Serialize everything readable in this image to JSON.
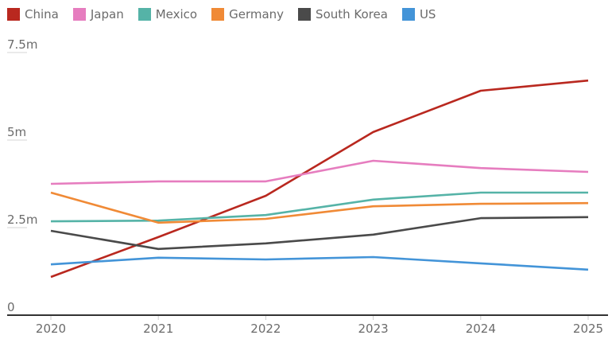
{
  "chart_data": {
    "type": "line",
    "title": "",
    "xlabel": "",
    "ylabel": "",
    "x": [
      "2020",
      "2021",
      "2022",
      "2023",
      "2024",
      "2025"
    ],
    "ylim": [
      0,
      7.5
    ],
    "yticks": [
      {
        "value": 0,
        "label": "0"
      },
      {
        "value": 2.5,
        "label": "2.5m"
      },
      {
        "value": 5,
        "label": "5m"
      },
      {
        "value": 7.5,
        "label": "7.5m"
      }
    ],
    "legend_position": "top-left",
    "grid": false,
    "series": [
      {
        "name": "China",
        "color": "#b9281f",
        "values": [
          1.09,
          2.23,
          3.41,
          5.23,
          6.41,
          6.7
        ]
      },
      {
        "name": "Japan",
        "color": "#e67dbf",
        "values": [
          3.75,
          3.82,
          3.82,
          4.41,
          4.2,
          4.09
        ]
      },
      {
        "name": "Mexico",
        "color": "#55b3a7",
        "values": [
          2.68,
          2.7,
          2.86,
          3.3,
          3.5,
          3.5
        ]
      },
      {
        "name": "Germany",
        "color": "#f08a36",
        "values": [
          3.5,
          2.64,
          2.75,
          3.11,
          3.18,
          3.2
        ]
      },
      {
        "name": "South Korea",
        "color": "#4a4a4a",
        "values": [
          2.41,
          1.89,
          2.05,
          2.3,
          2.77,
          2.8
        ]
      },
      {
        "name": "US",
        "color": "#4394d8",
        "values": [
          1.45,
          1.64,
          1.59,
          1.66,
          1.48,
          1.3
        ]
      }
    ]
  }
}
